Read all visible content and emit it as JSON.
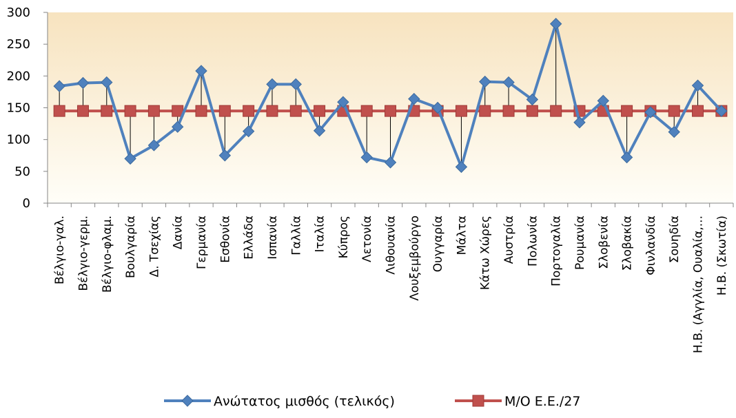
{
  "chart_data": {
    "type": "line",
    "title": "",
    "xlabel": "",
    "ylabel": "",
    "ylim": [
      0,
      300
    ],
    "yticks": [
      0,
      50,
      100,
      150,
      200,
      250,
      300
    ],
    "grid": false,
    "legend_position": "bottom",
    "categories": [
      "Βέλγιο-γαλ.",
      "Βέλγιο-γερμ.",
      "Βέλγιο-φλαμ.",
      "Βουλγαρία",
      "Δ. Τσεχίας",
      "Δανία",
      "Γερμανία",
      "Εσθονία",
      "Ελλάδα",
      "Ισπανία",
      "Γαλλία",
      "Ιταλία",
      "Κύπρος",
      "Λετονία",
      "Λιθουανία",
      "Λουξεμβούργο",
      "Ουγγαρία",
      "Μάλτα",
      "Κάτω Χώρες",
      "Αυστρία",
      "Πολωνία",
      "Πορτογαλία",
      "Ρουμανία",
      "Σλοβενία",
      "Σλοβακία",
      "Φινλανδία",
      "Σουηδία",
      "Η.Β. (Αγγλία, Ουαλία,...",
      "Η.Β. (Σκωτία)"
    ],
    "series": [
      {
        "name": "Ανώτατος μισθός (τελικός)",
        "color": "#4f81bd",
        "marker": "diamond",
        "values": [
          184,
          189,
          190,
          70,
          91,
          120,
          208,
          75,
          113,
          187,
          187,
          114,
          159,
          72,
          64,
          164,
          150,
          57,
          191,
          190,
          163,
          282,
          127,
          161,
          72,
          143,
          112,
          185,
          145
        ]
      },
      {
        "name": "Μ/Ο Ε.Ε./27",
        "color": "#c0504d",
        "marker": "square",
        "values": [
          145,
          145,
          145,
          145,
          145,
          145,
          145,
          145,
          145,
          145,
          145,
          145,
          145,
          145,
          145,
          145,
          145,
          145,
          145,
          145,
          145,
          145,
          145,
          145,
          145,
          145,
          145,
          145,
          145
        ]
      }
    ],
    "drop_lines": true
  }
}
